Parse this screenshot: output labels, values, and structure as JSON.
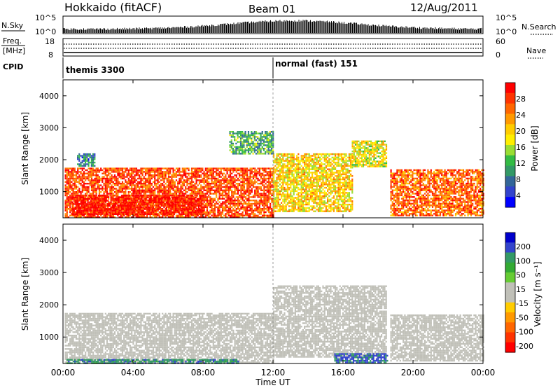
{
  "header": {
    "station": "Hokkaido (fitACF)",
    "beam": "Beam 01",
    "date": "12/Aug/2011"
  },
  "summary_panels": {
    "nsky_label": "N.Sky",
    "nsky_ticks": [
      "10^5",
      "10^0"
    ],
    "nsearch_label": "N.Search",
    "nsearch_ticks": [
      "10^5",
      "10^0"
    ],
    "freq_label_1": "Freq.",
    "freq_label_2": "[MHz]",
    "freq_ticks": [
      "18",
      "8"
    ],
    "nave_label": "Nave",
    "nave_ticks": [
      "60",
      "0"
    ],
    "cpid_label": "CPID",
    "modes": [
      {
        "name": "themis 3300",
        "start_hour": 0
      },
      {
        "name": "normal (fast) 151",
        "start_hour": 12
      }
    ]
  },
  "chart_data": [
    {
      "type": "heatmap",
      "panel": "power",
      "ylabel": "Slant Range [km]",
      "xlabel": "Time UT",
      "x_ticks": [
        "00:00",
        "04:00",
        "08:00",
        "12:00",
        "16:00",
        "20:00",
        "00:00"
      ],
      "xlim": [
        0,
        24
      ],
      "ylim": [
        180,
        4500
      ],
      "y_ticks": [
        1000,
        2000,
        3000,
        4000
      ],
      "colorbar": {
        "label": "Power [dB]",
        "ticks": [
          "28",
          "24",
          "20",
          "16",
          "12",
          "8",
          "4"
        ],
        "colors": [
          "#ff0000",
          "#ff3300",
          "#ff6600",
          "#ff9900",
          "#ffcc00",
          "#ffee00",
          "#99dd33",
          "#33bb44",
          "#339966",
          "#336699",
          "#3344cc",
          "#0000ff"
        ]
      },
      "blobs": [
        {
          "t0": 0.1,
          "t1": 12.0,
          "r0": 200,
          "r1": 1750,
          "level": 0.85
        },
        {
          "t0": 0.5,
          "t1": 8.0,
          "r0": 300,
          "r1": 900,
          "level": 0.95
        },
        {
          "t0": 12.0,
          "t1": 16.5,
          "r0": 400,
          "r1": 2200,
          "level": 0.6
        },
        {
          "t0": 16.5,
          "t1": 18.5,
          "r0": 1800,
          "r1": 2600,
          "level": 0.55
        },
        {
          "t0": 18.7,
          "t1": 24.0,
          "r0": 250,
          "r1": 1700,
          "level": 0.8
        },
        {
          "t0": 9.5,
          "t1": 12.0,
          "r0": 2200,
          "r1": 2900,
          "level": 0.35
        },
        {
          "t0": 0.8,
          "t1": 1.8,
          "r0": 1800,
          "r1": 2200,
          "level": 0.25
        }
      ]
    },
    {
      "type": "heatmap",
      "panel": "velocity",
      "ylabel": "Slant Range [km]",
      "xlabel": "Time UT",
      "x_ticks": [
        "00:00",
        "04:00",
        "08:00",
        "12:00",
        "16:00",
        "20:00",
        "00:00"
      ],
      "xlim": [
        0,
        24
      ],
      "ylim": [
        180,
        4500
      ],
      "y_ticks": [
        1000,
        2000,
        3000,
        4000
      ],
      "colorbar": {
        "label": "Velocity [m s⁻¹]",
        "ticks": [
          "200",
          "100",
          "50",
          "15",
          "-15",
          "-50",
          "-100",
          "-200"
        ],
        "colors": [
          "#0000cc",
          "#3344cc",
          "#339966",
          "#33aa33",
          "#66cc33",
          "#c0c0b8",
          "#c0c0b8",
          "#ffcc00",
          "#ff9900",
          "#ff6600",
          "#ff3300",
          "#ff0000"
        ]
      },
      "blobs": [
        {
          "t0": 0.1,
          "t1": 12.0,
          "r0": 200,
          "r1": 1750,
          "level": 0.5
        },
        {
          "t0": 12.0,
          "t1": 18.5,
          "r0": 400,
          "r1": 2600,
          "level": 0.5
        },
        {
          "t0": 18.7,
          "t1": 24.0,
          "r0": 250,
          "r1": 1700,
          "level": 0.5
        },
        {
          "t0": 0.2,
          "t1": 10.0,
          "r0": 190,
          "r1": 320,
          "level": 0.8
        },
        {
          "t0": 15.5,
          "t1": 18.5,
          "r0": 200,
          "r1": 500,
          "level": 0.85
        }
      ]
    }
  ]
}
